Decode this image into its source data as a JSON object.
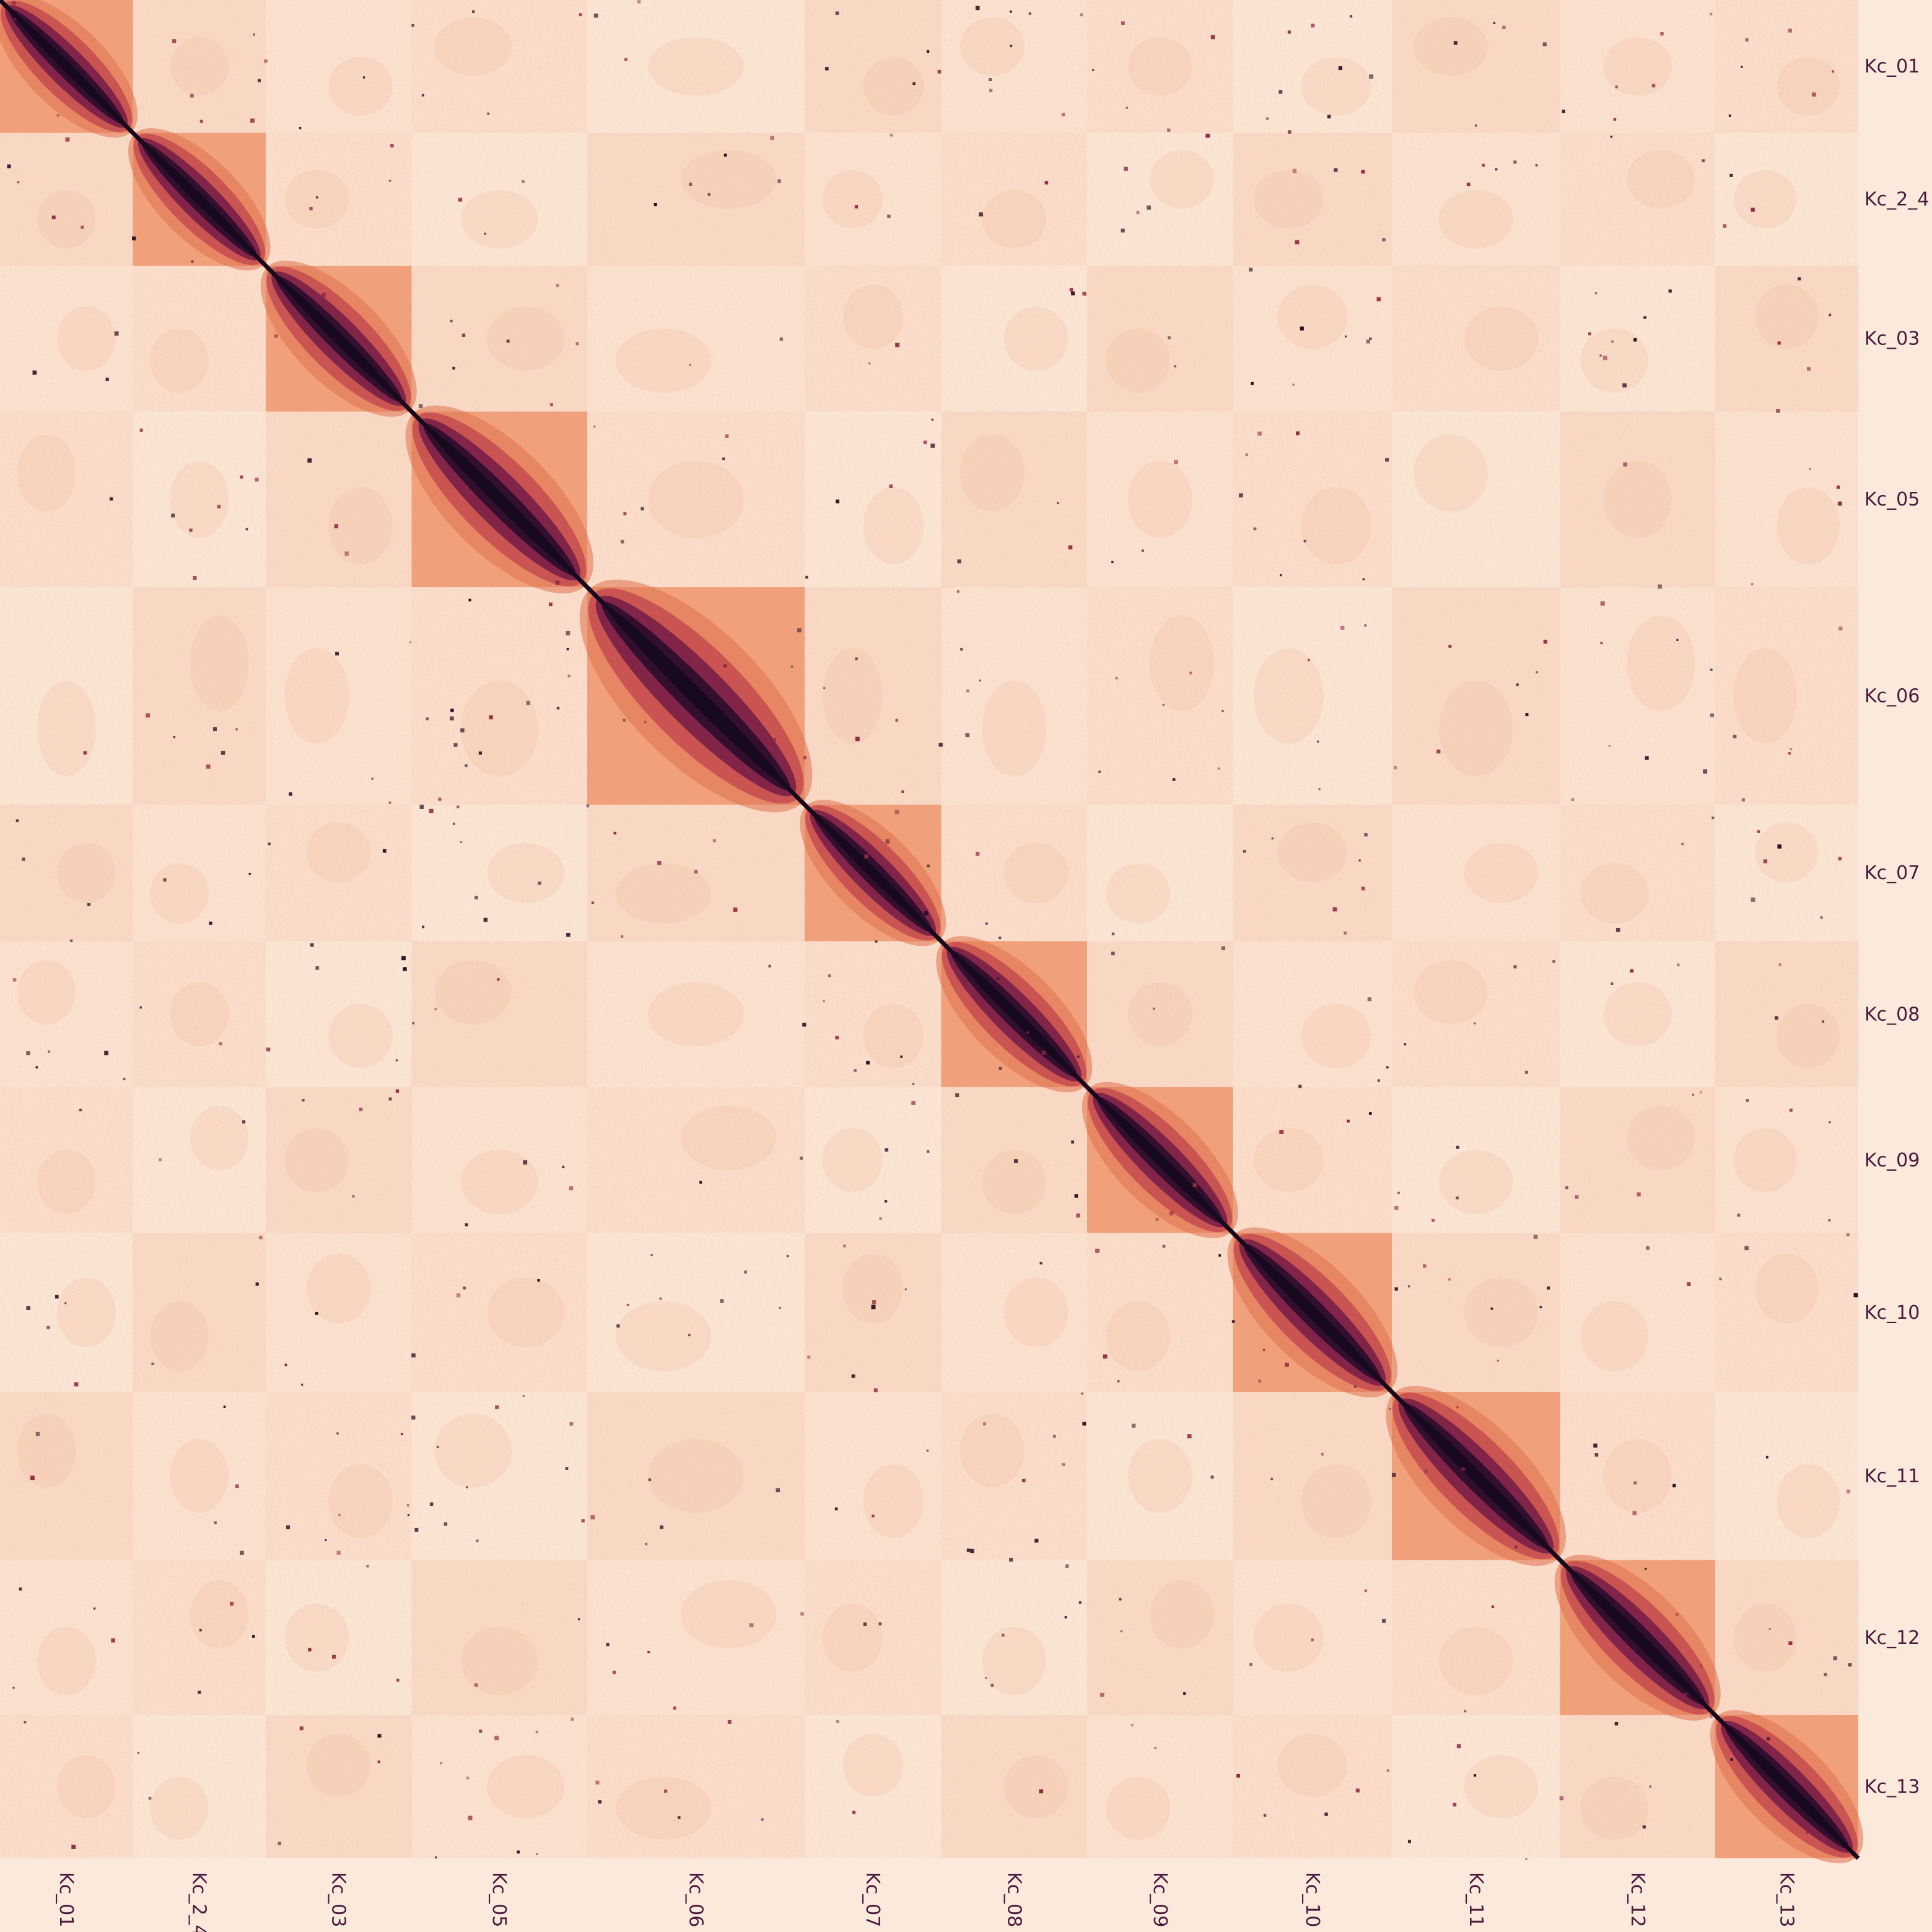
{
  "chart_data": {
    "type": "heatmap",
    "title": "",
    "xlabel": "",
    "ylabel": "",
    "grid": false,
    "legend": "none",
    "colormap": [
      "#fbe9dc",
      "#f7c9a8",
      "#ee8a5e",
      "#c43f3b",
      "#6f1846",
      "#170a1e"
    ],
    "chromosomes": [
      {
        "label": "Kc_01",
        "relative_size": 0.0715
      },
      {
        "label": "Kc_2_4",
        "relative_size": 0.0715
      },
      {
        "label": "Kc_03",
        "relative_size": 0.0785
      },
      {
        "label": "Kc_05",
        "relative_size": 0.0945
      },
      {
        "label": "Kc_06",
        "relative_size": 0.117
      },
      {
        "label": "Kc_07",
        "relative_size": 0.0735
      },
      {
        "label": "Kc_08",
        "relative_size": 0.0785
      },
      {
        "label": "Kc_09",
        "relative_size": 0.0785
      },
      {
        "label": "Kc_10",
        "relative_size": 0.0855
      },
      {
        "label": "Kc_11",
        "relative_size": 0.0905
      },
      {
        "label": "Kc_12",
        "relative_size": 0.0835
      },
      {
        "label": "Kc_13",
        "relative_size": 0.077
      }
    ]
  }
}
